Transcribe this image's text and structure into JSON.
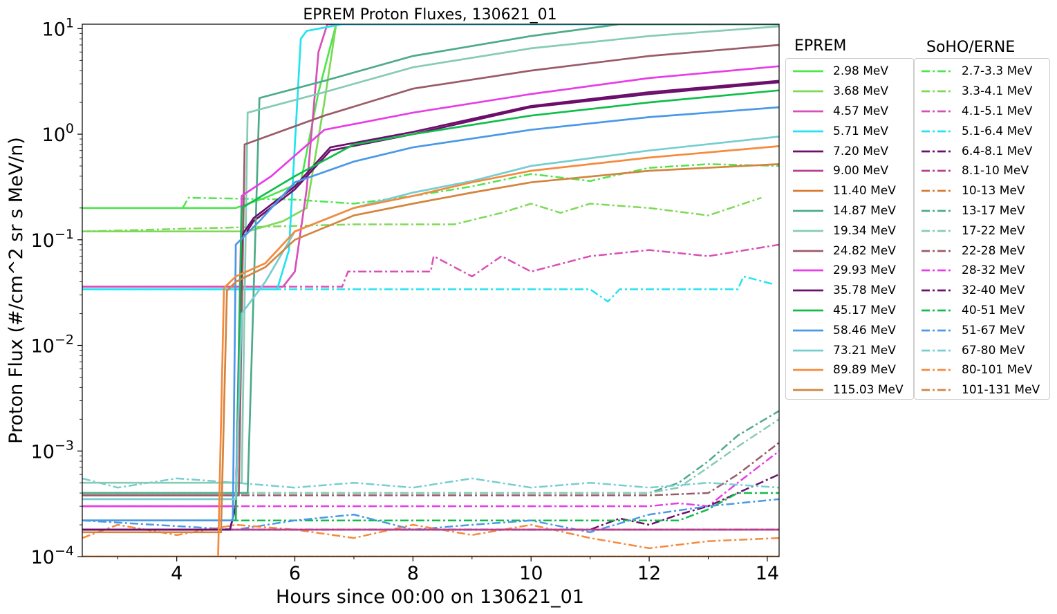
{
  "chart_data": {
    "type": "line",
    "title": "EPREM Proton Fluxes, 130621_01",
    "xlabel": "Hours since 00:00 on 130621_01",
    "ylabel": "Proton Flux (#/cm^2 sr s MeV/n)",
    "xlim": [
      2.4,
      14.2
    ],
    "ylim": [
      0.0001,
      11
    ],
    "yscale": "log",
    "xticks": [
      4,
      6,
      8,
      10,
      12,
      14
    ],
    "xtick_labels": [
      "4",
      "6",
      "8",
      "10",
      "12",
      "14"
    ],
    "yticks": [
      0.0001,
      0.001,
      0.01,
      0.1,
      1,
      10
    ],
    "ytick_labels": [
      {
        "base": "10",
        "exp": "−4"
      },
      {
        "base": "10",
        "exp": "−3"
      },
      {
        "base": "10",
        "exp": "−2"
      },
      {
        "base": "10",
        "exp": "−1"
      },
      {
        "base": "10",
        "exp": "0"
      },
      {
        "base": "10",
        "exp": "1"
      }
    ],
    "grid": false,
    "legend_groups": [
      {
        "title": "EPREM",
        "style": "solid",
        "placement": "right"
      },
      {
        "title": "SoHO/ERNE",
        "style": "dash-dot",
        "placement": "right"
      }
    ],
    "series": [
      {
        "name": "2.98 MeV",
        "color": "#4de64d",
        "x": [
          2.4,
          5.0,
          5.5,
          6.1,
          6.4,
          6.7,
          14.2
        ],
        "y": [
          0.2,
          0.2,
          0.25,
          0.35,
          2.5,
          11,
          11
        ]
      },
      {
        "name": "3.68 MeV",
        "color": "#7ed957",
        "x": [
          2.4,
          5.2,
          5.8,
          6.2,
          6.5,
          6.7,
          14.2
        ],
        "y": [
          0.12,
          0.12,
          0.15,
          0.2,
          2.0,
          11,
          11
        ]
      },
      {
        "name": "4.57 MeV",
        "color": "#d84fb8",
        "x": [
          2.4,
          5.8,
          6.0,
          6.2,
          6.4,
          6.55,
          14.2
        ],
        "y": [
          0.036,
          0.036,
          0.05,
          0.3,
          6.0,
          11,
          11
        ]
      },
      {
        "name": "5.71 MeV",
        "color": "#22e3f0",
        "x": [
          2.4,
          5.7,
          5.9,
          6.1,
          6.2,
          6.8,
          14.2
        ],
        "y": [
          0.034,
          0.034,
          0.08,
          8.0,
          9.5,
          11,
          11
        ]
      },
      {
        "name": "7.20 MeV",
        "color": "#6b0f6b",
        "x": [
          2.4,
          4.9,
          5.0,
          5.1,
          5.3,
          6.0,
          6.6,
          8.0,
          10.0,
          12.0,
          14.2
        ],
        "y": [
          0.00018,
          0.00018,
          0.0003,
          0.1,
          0.15,
          0.3,
          0.7,
          1.0,
          1.8,
          2.4,
          3.1
        ]
      },
      {
        "name": "9.00 MeV",
        "color": "#b83e8e",
        "x": [
          2.4,
          4.9,
          14.2
        ],
        "y": [
          0.00018,
          0.00018,
          0.00018
        ]
      },
      {
        "name": "11.40 MeV",
        "color": "#d87a30",
        "x": [
          2.4,
          4.7,
          14.2
        ],
        "y": [
          0.0001,
          0.0001,
          0.0001
        ]
      },
      {
        "name": "14.87 MeV",
        "color": "#4dab8a",
        "x": [
          2.4,
          5.2,
          5.4,
          6.5,
          8.0,
          10.0,
          11.5,
          14.2
        ],
        "y": [
          0.0004,
          0.0004,
          2.2,
          3.2,
          5.5,
          8.5,
          11,
          11
        ]
      },
      {
        "name": "19.34 MeV",
        "color": "#86cbb6",
        "x": [
          2.4,
          5.1,
          5.2,
          6.5,
          8.0,
          10.0,
          12.0,
          14.2
        ],
        "y": [
          0.0005,
          0.0005,
          1.6,
          2.5,
          4.3,
          6.5,
          8.5,
          10.5
        ]
      },
      {
        "name": "24.82 MeV",
        "color": "#9a5b68",
        "x": [
          2.4,
          5.05,
          5.15,
          6.5,
          8.0,
          10.0,
          12.0,
          14.2
        ],
        "y": [
          0.00038,
          0.00038,
          0.8,
          1.5,
          2.7,
          4.0,
          5.5,
          7.0
        ]
      },
      {
        "name": "29.93 MeV",
        "color": "#e63de6",
        "x": [
          2.4,
          5.0,
          5.1,
          5.6,
          6.5,
          8.0,
          10.0,
          12.0,
          14.2
        ],
        "y": [
          0.0003,
          0.0003,
          0.26,
          0.4,
          1.1,
          1.6,
          2.4,
          3.4,
          4.4
        ]
      },
      {
        "name": "35.78 MeV",
        "color": "#6b0f6b",
        "x": [
          2.4,
          4.9,
          5.0,
          5.1,
          5.3,
          6.0,
          6.6,
          8.0,
          10.0,
          12.0,
          14.2
        ],
        "y": [
          0.00018,
          0.00018,
          0.0003,
          0.11,
          0.16,
          0.32,
          0.75,
          1.05,
          1.85,
          2.5,
          3.2
        ]
      },
      {
        "name": "45.17 MeV",
        "color": "#10bd4a",
        "x": [
          2.4,
          5.0,
          5.1,
          6.0,
          7.0,
          8.0,
          10.0,
          12.0,
          14.2
        ],
        "y": [
          0.00022,
          0.00022,
          0.2,
          0.4,
          0.8,
          1.0,
          1.5,
          2.0,
          2.6
        ]
      },
      {
        "name": "58.46 MeV",
        "color": "#4a98e8",
        "x": [
          2.4,
          4.95,
          5.0,
          5.4,
          6.0,
          7.0,
          8.0,
          10.0,
          12.0,
          14.2
        ],
        "y": [
          0.00022,
          0.00022,
          0.09,
          0.15,
          0.35,
          0.55,
          0.75,
          1.1,
          1.45,
          1.8
        ]
      },
      {
        "name": "73.21 MeV",
        "color": "#76cdd1",
        "x": [
          2.4,
          5.0,
          5.1,
          5.5,
          6.0,
          7.0,
          8.0,
          9.0,
          10.0,
          12.0,
          14.2
        ],
        "y": [
          0.00035,
          0.00035,
          0.02,
          0.04,
          0.12,
          0.2,
          0.28,
          0.36,
          0.5,
          0.7,
          0.95
        ]
      },
      {
        "name": "89.89 MeV",
        "color": "#f58a3d",
        "x": [
          2.4,
          4.7,
          4.8,
          5.0,
          5.5,
          6.0,
          7.0,
          8.0,
          9.0,
          10.0,
          12.0,
          14.2
        ],
        "y": [
          0.0001,
          0.0001,
          0.035,
          0.045,
          0.06,
          0.12,
          0.2,
          0.26,
          0.35,
          0.45,
          0.6,
          0.77
        ]
      },
      {
        "name": "115.03 MeV",
        "color": "#d4843e",
        "x": [
          2.4,
          4.75,
          4.85,
          5.0,
          5.5,
          6.0,
          7.0,
          8.0,
          9.0,
          10.0,
          12.0,
          14.2
        ],
        "y": [
          0.00017,
          0.00017,
          0.033,
          0.04,
          0.055,
          0.1,
          0.17,
          0.22,
          0.28,
          0.35,
          0.45,
          0.52
        ]
      }
    ],
    "observed_series": [
      {
        "name": "2.7-3.3 MeV",
        "color": "#4de64d",
        "x": [
          4.1,
          4.2,
          6.0,
          7.0,
          8.0,
          9.0,
          10.0,
          11.0,
          12.0,
          13.0,
          14.2
        ],
        "y": [
          0.2,
          0.25,
          0.24,
          0.22,
          0.26,
          0.32,
          0.42,
          0.36,
          0.48,
          0.52,
          0.5
        ]
      },
      {
        "name": "3.3-4.1 MeV",
        "color": "#7ed957",
        "x": [
          2.4,
          7.0,
          8.0,
          8.7,
          9.5,
          10.0,
          10.5,
          11.0,
          12.0,
          13.0,
          13.9
        ],
        "y": [
          0.12,
          0.14,
          0.14,
          0.14,
          0.18,
          0.22,
          0.18,
          0.22,
          0.2,
          0.17,
          0.25
        ]
      },
      {
        "name": "4.1-5.1 MeV",
        "color": "#d84fb8",
        "x": [
          2.4,
          6.8,
          6.9,
          8.0,
          8.3,
          8.35,
          9.0,
          9.5,
          10.0,
          11.0,
          12.0,
          13.0,
          14.2
        ],
        "y": [
          0.036,
          0.036,
          0.05,
          0.05,
          0.05,
          0.07,
          0.045,
          0.07,
          0.05,
          0.07,
          0.08,
          0.07,
          0.09
        ]
      },
      {
        "name": "5.1-6.4 MeV",
        "color": "#22e3f0",
        "x": [
          2.4,
          11.0,
          11.3,
          11.5,
          12.0,
          13.0,
          13.5,
          13.6,
          14.1
        ],
        "y": [
          0.034,
          0.034,
          0.026,
          0.034,
          0.034,
          0.034,
          0.034,
          0.045,
          0.038
        ]
      },
      {
        "name": "6.4-8.1 MeV",
        "color": "#6b0f6b",
        "x": [
          2.4,
          14.2
        ],
        "y": [
          0.00018,
          0.00018
        ]
      },
      {
        "name": "8.1-10 MeV",
        "color": "#b83e8e",
        "x": [
          2.4,
          14.2
        ],
        "y": [
          0.00018,
          0.00018
        ]
      },
      {
        "name": "10-13 MeV",
        "color": "#d87a30",
        "x": [
          2.4,
          14.2
        ],
        "y": [
          0.0001,
          0.0001
        ]
      },
      {
        "name": "13-17 MeV",
        "color": "#4dab8a",
        "x": [
          2.4,
          12.0,
          12.5,
          13.0,
          13.5,
          14.2
        ],
        "y": [
          0.0004,
          0.0004,
          0.0005,
          0.0008,
          0.0014,
          0.0024
        ]
      },
      {
        "name": "17-22 MeV",
        "color": "#86cbb6",
        "x": [
          2.4,
          12.0,
          12.5,
          13.0,
          13.5,
          14.2
        ],
        "y": [
          0.0004,
          0.0004,
          0.00045,
          0.0007,
          0.0011,
          0.002
        ]
      },
      {
        "name": "22-28 MeV",
        "color": "#9a5b68",
        "x": [
          2.4,
          12.0,
          13.0,
          13.5,
          14.2
        ],
        "y": [
          0.00038,
          0.00038,
          0.0004,
          0.0006,
          0.0012
        ]
      },
      {
        "name": "28-32 MeV",
        "color": "#e63de6",
        "x": [
          2.4,
          12.0,
          12.5,
          13.0,
          13.5,
          14.2
        ],
        "y": [
          0.0003,
          0.0003,
          0.00032,
          0.0003,
          0.0005,
          0.001
        ]
      },
      {
        "name": "32-40 MeV",
        "color": "#6b0f6b",
        "x": [
          2.4,
          11.0,
          11.5,
          12.0,
          12.5,
          13.0,
          13.5,
          14.2
        ],
        "y": [
          0.00018,
          0.00018,
          0.00023,
          0.0002,
          0.00025,
          0.0003,
          0.0004,
          0.0006
        ]
      },
      {
        "name": "40-51 MeV",
        "color": "#10bd4a",
        "x": [
          2.4,
          12.5,
          13.0,
          13.5,
          14.2
        ],
        "y": [
          0.00022,
          0.00022,
          0.00028,
          0.0004,
          0.0004
        ]
      },
      {
        "name": "51-67 MeV",
        "color": "#4a98e8",
        "x": [
          2.4,
          5.0,
          6.0,
          7.0,
          8.0,
          9.0,
          10.0,
          11.0,
          12.0,
          13.0,
          14.2
        ],
        "y": [
          0.00022,
          0.00018,
          0.00022,
          0.00025,
          0.00018,
          0.0002,
          0.00022,
          0.00017,
          0.00025,
          0.0003,
          0.00035
        ]
      },
      {
        "name": "67-80 MeV",
        "color": "#76cdd1",
        "x": [
          2.4,
          3.0,
          4.0,
          5.0,
          6.0,
          7.0,
          8.0,
          9.0,
          10.0,
          11.0,
          12.0,
          13.0,
          14.2
        ],
        "y": [
          0.00055,
          0.00045,
          0.00055,
          0.0005,
          0.00045,
          0.0005,
          0.00045,
          0.00055,
          0.00045,
          0.0005,
          0.00045,
          0.0005,
          0.00045
        ]
      },
      {
        "name": "80-101 MeV",
        "color": "#f58a3d",
        "x": [
          2.4,
          3.0,
          4.0,
          5.0,
          6.0,
          7.0,
          8.0,
          9.0,
          10.0,
          11.0,
          12.0,
          13.0,
          14.2
        ],
        "y": [
          0.00015,
          0.0002,
          0.00016,
          0.0002,
          0.00018,
          0.00015,
          0.0002,
          0.00016,
          0.0002,
          0.00015,
          0.00012,
          0.00014,
          0.00015
        ]
      },
      {
        "name": "101-131 MeV",
        "color": "#d4843e",
        "x": [
          2.4,
          14.2
        ],
        "y": [
          0.0001,
          0.0001
        ]
      }
    ]
  }
}
